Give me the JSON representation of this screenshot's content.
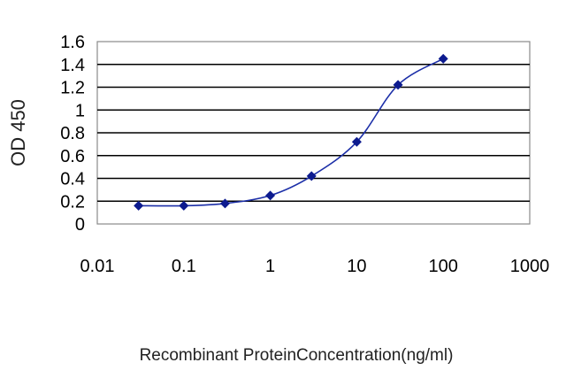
{
  "chart_data": {
    "type": "line",
    "title": "",
    "xlabel": "Recombinant ProteinConcentration(ng/ml)",
    "ylabel": "OD 450",
    "x_scale": "log",
    "xlim": [
      0.01,
      1000
    ],
    "ylim": [
      0,
      1.6
    ],
    "x_ticks": [
      "0.01",
      "0.1",
      "1",
      "10",
      "100",
      "1000"
    ],
    "y_ticks": [
      "0",
      "0.2",
      "0.4",
      "0.6",
      "0.8",
      "1",
      "1.2",
      "1.4",
      "1.6"
    ],
    "grid": "horizontal",
    "legend": "none",
    "series": [
      {
        "x": [
          0.03,
          0.1,
          0.3,
          1,
          3,
          10,
          30,
          100
        ],
        "y": [
          0.16,
          0.16,
          0.18,
          0.25,
          0.42,
          0.72,
          1.22,
          1.45
        ]
      }
    ],
    "colors": {
      "series": "#1c2fa8",
      "marker": "#0d1b8f",
      "grid": "#000000",
      "frame": "#8a8a8a",
      "plot_bg": "#ffffff"
    }
  }
}
